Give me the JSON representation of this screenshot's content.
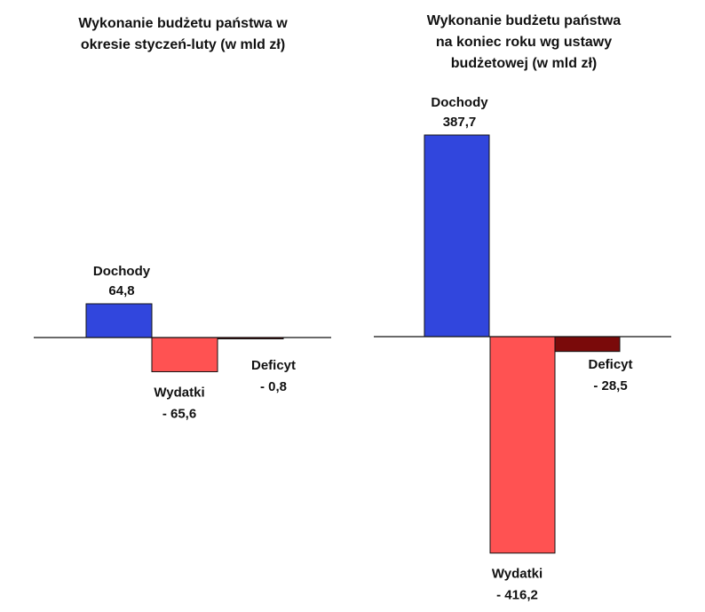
{
  "chart_data": [
    {
      "type": "bar",
      "title_lines": [
        "Wykonanie budżetu państwa w",
        "okresie styczeń-luty (w mld zł)"
      ],
      "categories": [
        "Dochody",
        "Wydatki",
        "Deficyt"
      ],
      "values": [
        64.8,
        -65.6,
        -0.8
      ],
      "value_labels": [
        "64,8",
        "- 65,6",
        "- 0,8"
      ],
      "colors": [
        "#3146dd",
        "#ff5252",
        "#7a0a0a"
      ],
      "xlabel": "",
      "ylabel": ""
    },
    {
      "type": "bar",
      "title_lines": [
        "Wykonanie budżetu państwa",
        "na koniec roku wg ustawy",
        "budżetowej (w mld zł)"
      ],
      "categories": [
        "Dochody",
        "Wydatki",
        "Deficyt"
      ],
      "values": [
        387.7,
        -416.2,
        -28.5
      ],
      "value_labels": [
        "387,7",
        "- 416,2",
        "- 28,5"
      ],
      "colors": [
        "#3146dd",
        "#ff5252",
        "#7a0a0a"
      ],
      "xlabel": "",
      "ylabel": ""
    }
  ]
}
